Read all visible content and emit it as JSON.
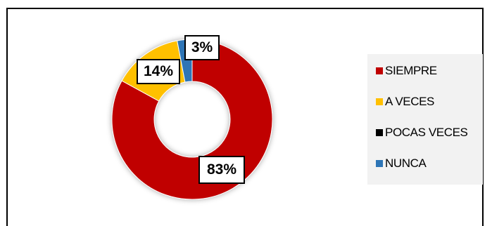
{
  "chart_data": {
    "type": "pie",
    "variant": "donut",
    "categories": [
      "SIEMPRE",
      "A VECES",
      "POCAS VECES",
      "NUNCA"
    ],
    "values": [
      83,
      14,
      0,
      3
    ],
    "data_labels": [
      "83%",
      "14%",
      "",
      "3%"
    ],
    "colors": [
      "#c00000",
      "#ffc000",
      "#000000",
      "#2e75b6"
    ],
    "legend_position": "right",
    "title": ""
  }
}
